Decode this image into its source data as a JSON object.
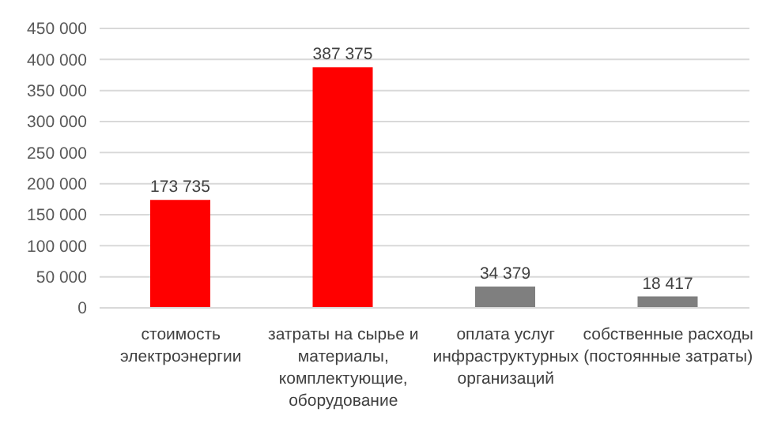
{
  "chart_data": {
    "type": "bar",
    "categories": [
      "стоимость электроэнергии",
      "затраты на сырье и материалы, комплектующие, оборудование",
      "оплата услуг инфраструктурных организаций",
      "собственные расходы (постоянные затраты)"
    ],
    "values": [
      173735,
      387375,
      34379,
      18417
    ],
    "colors": [
      "#ff0000",
      "#ff0000",
      "#7f7f7f",
      "#7f7f7f"
    ],
    "value_labels": [
      "173 735",
      "387 375",
      "34 379",
      "18 417"
    ],
    "ylim": [
      0,
      450000
    ],
    "yticks": [
      {
        "value": 0,
        "label": "0"
      },
      {
        "value": 50000,
        "label": "50 000"
      },
      {
        "value": 100000,
        "label": "100 000"
      },
      {
        "value": 150000,
        "label": "150 000"
      },
      {
        "value": 200000,
        "label": "200 000"
      },
      {
        "value": 250000,
        "label": "250 000"
      },
      {
        "value": 300000,
        "label": "300 000"
      },
      {
        "value": 350000,
        "label": "350 000"
      },
      {
        "value": 400000,
        "label": "400 000"
      },
      {
        "value": 450000,
        "label": "450 000"
      }
    ],
    "grid": "y"
  }
}
